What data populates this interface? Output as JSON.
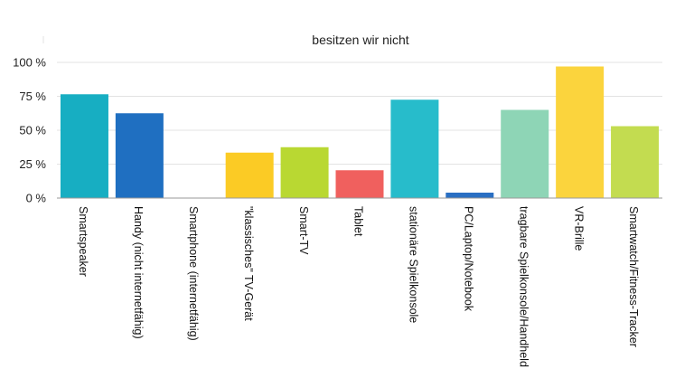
{
  "chart_data": {
    "type": "bar",
    "title": "besitzen wir nicht",
    "xlabel": "",
    "ylabel": "",
    "ylim": [
      0,
      100
    ],
    "y_ticks": [
      0,
      25,
      50,
      75,
      100
    ],
    "y_tick_labels": [
      "0 %",
      "25 %",
      "50 %",
      "75 %",
      "100 %"
    ],
    "grid": true,
    "legend": "none",
    "categories": [
      "Smartspeaker",
      "Handy (nicht internetfähig)",
      "Smartphone (internetfähig)",
      "\"klassisches\" TV-Gerät",
      "Smart-TV",
      "Tablet",
      "stationäre Spielkonsole",
      "PC/Laptop/Notebook",
      "tragbare Spielkonsole/Handheld",
      "VR-Brille",
      "Smartwatch/Fitness-Tracker"
    ],
    "values": [
      76.5,
      62.5,
      0,
      33.5,
      37.5,
      20.5,
      72.5,
      4,
      65,
      97,
      53
    ],
    "colors": [
      "#17aec2",
      "#1f6fc1",
      "#1f6fc1",
      "#fbcb25",
      "#b9d832",
      "#f0605e",
      "#27bccb",
      "#2a6fc3",
      "#8ed5b6",
      "#fbd43d",
      "#c3dc50"
    ]
  }
}
